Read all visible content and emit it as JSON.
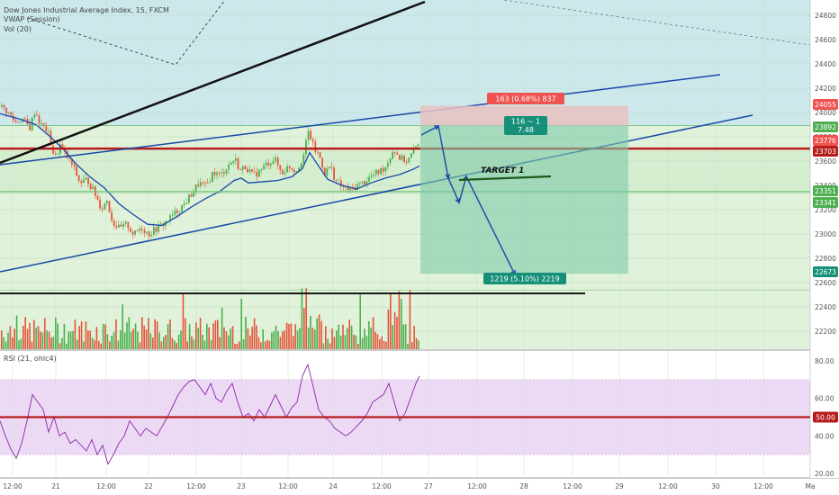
{
  "header": {
    "symbol_title": "Dow Jones Industrial Average Index, 15, FXCM",
    "vwap_label": "VWAP (Session)",
    "volume_label": "Vol (20)",
    "rsi_label": "RSI (21, ohlc4)"
  },
  "colors": {
    "background_top": "#cde8ea",
    "band_green": "#e0f2d9",
    "rsi_band": "#ecdaf5",
    "blue_line": "#1848a8",
    "red_line": "#b71c1c",
    "up_candle": "#4caf50",
    "down_candle": "#e5553b",
    "target_box": "#7fc9a8",
    "stop_box": "#e7c2c2",
    "rsi_line": "#8e24aa"
  },
  "chart_data": [
    {
      "type": "line",
      "title": "Dow Jones Industrial Average Index, 15, FXCM",
      "price_axis": {
        "ticks": [
          22200,
          22400,
          22600,
          22800,
          23000,
          23200,
          23400,
          23600,
          23800,
          24000,
          24200,
          24400,
          24600,
          24800
        ],
        "ylim": [
          22050,
          24900
        ]
      },
      "time_axis": {
        "labels": [
          "12:00",
          "21",
          "12:00",
          "22",
          "12:00",
          "23",
          "12:00",
          "24",
          "12:00",
          "27",
          "12:00",
          "28",
          "12:00",
          "29",
          "12:00",
          "30",
          "12:00",
          "Ma"
        ]
      },
      "price_badges": [
        {
          "value": "24055",
          "kind": "stop"
        },
        {
          "value": "23892",
          "kind": "level"
        },
        {
          "value": "23776",
          "kind": "last"
        },
        {
          "value": "23703",
          "kind": "resistance"
        },
        {
          "value": "23351",
          "kind": "level"
        },
        {
          "value": "23341",
          "kind": "level"
        },
        {
          "value": "22673",
          "kind": "target"
        }
      ],
      "position": {
        "entry": 23892,
        "stop": 24055,
        "target": 22673,
        "stop_label": "163 (0.68%) 837",
        "target_label": "1219 (5.10%) 2219",
        "ratio_label_1": "116 ~ 1",
        "ratio_label_2": "7.48"
      },
      "annotations": {
        "target_1": "TARGET 1"
      },
      "horizontal_levels": [
        {
          "value": 23703,
          "color": "red"
        },
        {
          "value": 23351,
          "color": "green"
        },
        {
          "value": 23341,
          "color": "green"
        },
        {
          "value": 23892,
          "color": "green"
        }
      ],
      "price_path": [
        [
          0,
          24050
        ],
        [
          8,
          24000
        ],
        [
          16,
          23920
        ],
        [
          24,
          23950
        ],
        [
          32,
          23870
        ],
        [
          38,
          24020
        ],
        [
          44,
          23900
        ],
        [
          52,
          23850
        ],
        [
          60,
          23620
        ],
        [
          66,
          23730
        ],
        [
          72,
          23650
        ],
        [
          80,
          23560
        ],
        [
          88,
          23420
        ],
        [
          96,
          23450
        ],
        [
          104,
          23340
        ],
        [
          112,
          23210
        ],
        [
          118,
          23280
        ],
        [
          124,
          23100
        ],
        [
          132,
          23040
        ],
        [
          140,
          23080
        ],
        [
          148,
          22990
        ],
        [
          156,
          23060
        ],
        [
          164,
          23000
        ],
        [
          172,
          23040
        ],
        [
          180,
          23080
        ],
        [
          188,
          23130
        ],
        [
          196,
          23190
        ],
        [
          204,
          23250
        ],
        [
          212,
          23330
        ],
        [
          220,
          23420
        ],
        [
          228,
          23390
        ],
        [
          236,
          23510
        ],
        [
          244,
          23480
        ],
        [
          252,
          23560
        ],
        [
          260,
          23620
        ],
        [
          266,
          23520
        ],
        [
          272,
          23560
        ],
        [
          280,
          23480
        ],
        [
          288,
          23520
        ],
        [
          296,
          23580
        ],
        [
          304,
          23620
        ],
        [
          312,
          23500
        ],
        [
          320,
          23560
        ],
        [
          328,
          23520
        ],
        [
          336,
          23640
        ],
        [
          342,
          23850
        ],
        [
          348,
          23700
        ],
        [
          354,
          23640
        ],
        [
          360,
          23500
        ],
        [
          366,
          23560
        ],
        [
          372,
          23440
        ],
        [
          380,
          23380
        ],
        [
          388,
          23360
        ],
        [
          396,
          23400
        ],
        [
          404,
          23430
        ],
        [
          412,
          23480
        ],
        [
          420,
          23510
        ],
        [
          428,
          23560
        ],
        [
          436,
          23700
        ],
        [
          444,
          23620
        ],
        [
          452,
          23600
        ],
        [
          460,
          23700
        ],
        [
          466,
          23790
        ]
      ],
      "vwap_path": [
        [
          0,
          23990
        ],
        [
          20,
          23950
        ],
        [
          40,
          23900
        ],
        [
          56,
          23800
        ],
        [
          70,
          23700
        ],
        [
          84,
          23580
        ],
        [
          100,
          23470
        ],
        [
          116,
          23380
        ],
        [
          132,
          23250
        ],
        [
          148,
          23160
        ],
        [
          164,
          23080
        ],
        [
          180,
          23070
        ],
        [
          196,
          23140
        ],
        [
          212,
          23220
        ],
        [
          228,
          23290
        ],
        [
          244,
          23350
        ],
        [
          260,
          23440
        ],
        [
          268,
          23460
        ],
        [
          276,
          23420
        ],
        [
          292,
          23430
        ],
        [
          308,
          23440
        ],
        [
          324,
          23470
        ],
        [
          336,
          23540
        ],
        [
          344,
          23670
        ],
        [
          352,
          23580
        ],
        [
          364,
          23450
        ],
        [
          380,
          23400
        ],
        [
          396,
          23370
        ],
        [
          412,
          23420
        ],
        [
          428,
          23460
        ],
        [
          444,
          23490
        ],
        [
          458,
          23530
        ],
        [
          466,
          23560
        ]
      ]
    },
    {
      "type": "line",
      "title": "RSI (21, ohlc4)",
      "ylim": [
        18,
        84
      ],
      "ticks": [
        20.0,
        40.0,
        60.0,
        80.0
      ],
      "midline": 50.0,
      "midline_label": "50.00",
      "band": [
        30,
        70
      ],
      "values": [
        [
          0,
          48
        ],
        [
          6,
          40
        ],
        [
          12,
          33
        ],
        [
          18,
          28
        ],
        [
          24,
          36
        ],
        [
          30,
          48
        ],
        [
          36,
          62
        ],
        [
          42,
          58
        ],
        [
          48,
          54
        ],
        [
          54,
          42
        ],
        [
          60,
          50
        ],
        [
          66,
          40
        ],
        [
          72,
          42
        ],
        [
          78,
          36
        ],
        [
          84,
          38
        ],
        [
          90,
          35
        ],
        [
          96,
          32
        ],
        [
          102,
          38
        ],
        [
          108,
          30
        ],
        [
          114,
          35
        ],
        [
          120,
          25
        ],
        [
          126,
          30
        ],
        [
          132,
          36
        ],
        [
          138,
          40
        ],
        [
          144,
          48
        ],
        [
          150,
          44
        ],
        [
          156,
          40
        ],
        [
          162,
          44
        ],
        [
          168,
          42
        ],
        [
          174,
          40
        ],
        [
          180,
          45
        ],
        [
          186,
          50
        ],
        [
          192,
          56
        ],
        [
          198,
          62
        ],
        [
          204,
          66
        ],
        [
          210,
          69
        ],
        [
          216,
          70
        ],
        [
          222,
          66
        ],
        [
          228,
          62
        ],
        [
          234,
          68
        ],
        [
          240,
          60
        ],
        [
          246,
          58
        ],
        [
          252,
          64
        ],
        [
          258,
          68
        ],
        [
          264,
          58
        ],
        [
          270,
          50
        ],
        [
          276,
          52
        ],
        [
          282,
          48
        ],
        [
          288,
          54
        ],
        [
          294,
          50
        ],
        [
          300,
          56
        ],
        [
          306,
          62
        ],
        [
          312,
          56
        ],
        [
          318,
          50
        ],
        [
          324,
          55
        ],
        [
          330,
          58
        ],
        [
          336,
          72
        ],
        [
          342,
          78
        ],
        [
          348,
          66
        ],
        [
          354,
          54
        ],
        [
          360,
          50
        ],
        [
          366,
          48
        ],
        [
          372,
          44
        ],
        [
          378,
          42
        ],
        [
          384,
          40
        ],
        [
          390,
          42
        ],
        [
          396,
          45
        ],
        [
          402,
          48
        ],
        [
          408,
          52
        ],
        [
          414,
          58
        ],
        [
          420,
          60
        ],
        [
          426,
          62
        ],
        [
          432,
          68
        ],
        [
          438,
          58
        ],
        [
          444,
          48
        ],
        [
          450,
          52
        ],
        [
          456,
          60
        ],
        [
          462,
          68
        ],
        [
          466,
          72
        ]
      ]
    },
    {
      "type": "bar",
      "title": "Vol (20)",
      "note": "volume histogram bars under price pane"
    }
  ]
}
